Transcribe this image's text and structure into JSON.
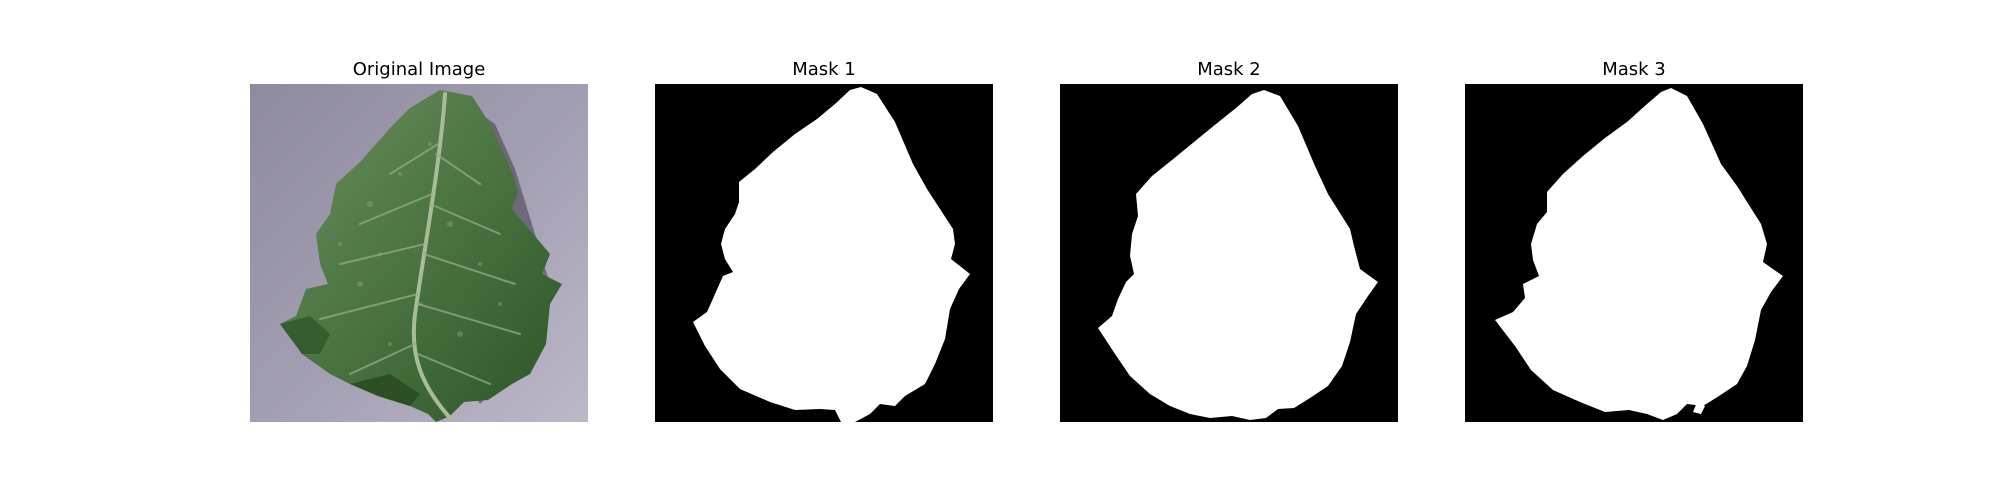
{
  "figure": {
    "panels": [
      {
        "title": "Original Image",
        "kind": "photo"
      },
      {
        "title": "Mask 1",
        "kind": "mask"
      },
      {
        "title": "Mask 2",
        "kind": "mask"
      },
      {
        "title": "Mask 3",
        "kind": "mask"
      }
    ]
  },
  "colors": {
    "background": "#ffffff",
    "mask_background": "#000000",
    "mask_foreground": "#ffffff",
    "photo_background": "#9c97ab",
    "leaf_dark": "#2f5a2b",
    "leaf_mid": "#4f7a45",
    "leaf_light": "#7c9b6e",
    "leaf_vein": "#a7bc97"
  }
}
